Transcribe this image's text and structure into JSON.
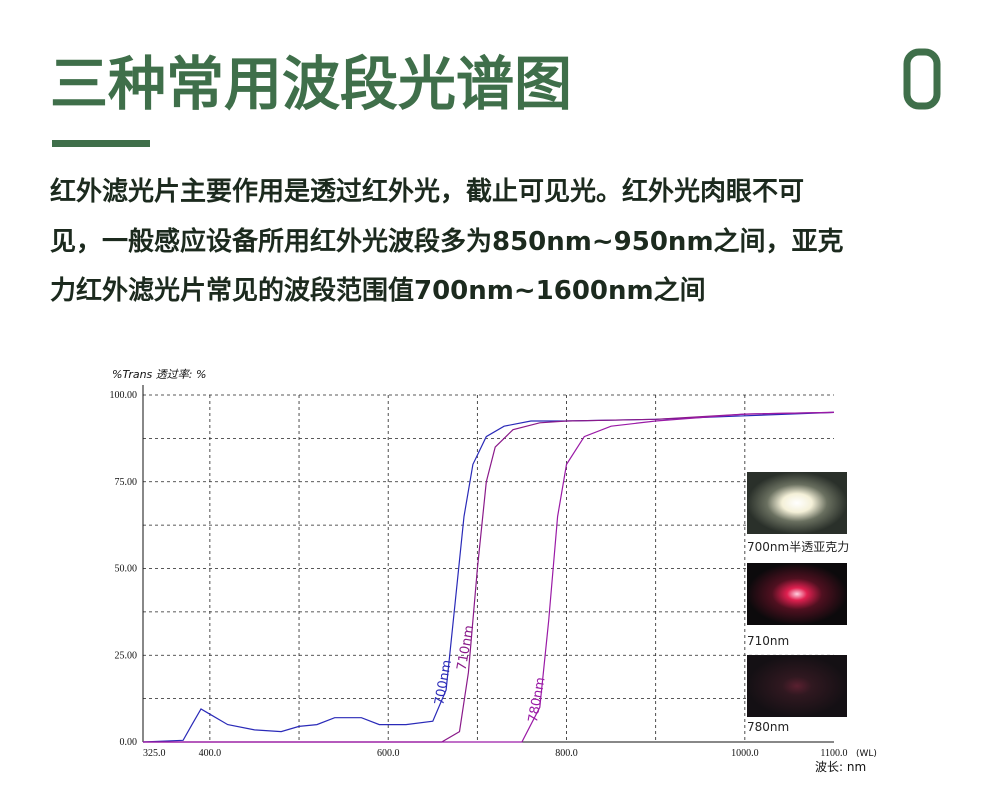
{
  "header": {
    "title": "三种常用波段光谱图"
  },
  "body": {
    "lines": [
      "红外滤光片主要作用是透过红外光，截止可见光。红外光肉眼不可",
      "见，一般感应设备所用红外光波段多为850nm~950nm之间，亚克",
      "力红外滤光片常见的波段范围值700nm~1600nm之间"
    ]
  },
  "chart_data": {
    "type": "line",
    "ylabel": "%Trans  透过率: %",
    "xlabel": "(WL)",
    "xlabel2": "波长: nm",
    "xlim": [
      325,
      1100
    ],
    "ylim": [
      0,
      100
    ],
    "xticks": [
      {
        "value": 325,
        "label": "325.0"
      },
      {
        "value": 400,
        "label": "400.0"
      },
      {
        "value": 600,
        "label": "600.0"
      },
      {
        "value": 800,
        "label": "800.0"
      },
      {
        "value": 1000,
        "label": "1000.0"
      },
      {
        "value": 1100,
        "label": "1100.0"
      }
    ],
    "yticks": [
      {
        "value": 0,
        "label": "0.00"
      },
      {
        "value": 25,
        "label": "25.00"
      },
      {
        "value": 50,
        "label": "50.00"
      },
      {
        "value": 75,
        "label": "75.00"
      },
      {
        "value": 100,
        "label": "100.00"
      }
    ],
    "grid": true,
    "series": [
      {
        "name": "700nm",
        "color": "#2a2ab8",
        "x": [
          325,
          370,
          380,
          390,
          400,
          420,
          450,
          480,
          500,
          520,
          540,
          570,
          590,
          620,
          650,
          665,
          675,
          685,
          695,
          710,
          730,
          760,
          800,
          900,
          1000,
          1100
        ],
        "values": [
          0,
          0.5,
          5,
          9.5,
          8,
          5,
          3.5,
          3,
          4.5,
          5,
          7,
          7,
          5,
          5,
          6,
          15,
          40,
          65,
          80,
          88,
          91,
          92.5,
          92.5,
          93,
          94,
          95
        ]
      },
      {
        "name": "710nm",
        "color": "#8a1a8a",
        "x": [
          325,
          660,
          680,
          690,
          700,
          710,
          720,
          740,
          770,
          800,
          900,
          1000,
          1100
        ],
        "values": [
          0,
          0,
          3,
          20,
          50,
          75,
          85,
          90,
          92,
          92.5,
          93,
          94.5,
          95
        ]
      },
      {
        "name": "780nm",
        "color": "#9a1aa6",
        "x": [
          325,
          750,
          770,
          780,
          790,
          800,
          820,
          850,
          900,
          1000,
          1100
        ],
        "values": [
          0,
          0,
          10,
          35,
          65,
          80,
          88,
          91,
          92.5,
          94.5,
          95
        ]
      }
    ]
  },
  "photos": [
    {
      "caption": "700nm半透亚克力"
    },
    {
      "caption": "710nm"
    },
    {
      "caption": "780nm"
    }
  ]
}
